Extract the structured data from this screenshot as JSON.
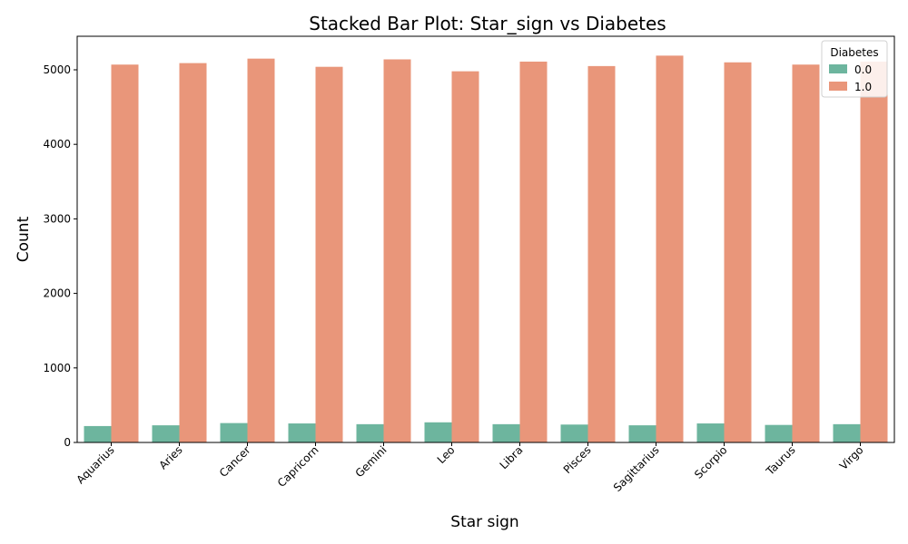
{
  "chart_data": {
    "type": "bar",
    "title": "Stacked Bar Plot: Star_sign vs Diabetes",
    "xlabel": "Star sign",
    "ylabel": "Count",
    "ylim": [
      0,
      5450
    ],
    "yticks": [
      0,
      1000,
      2000,
      3000,
      4000,
      5000
    ],
    "grid": false,
    "legend": {
      "title": "Diabetes",
      "placement": "top-right"
    },
    "categories": [
      "Aquarius",
      "Aries",
      "Cancer",
      "Capricorn",
      "Gemini",
      "Leo",
      "Libra",
      "Pisces",
      "Sagittarius",
      "Scorpio",
      "Taurus",
      "Virgo"
    ],
    "series": [
      {
        "name": "0.0",
        "color": "#6db59e",
        "values": [
          220,
          230,
          260,
          255,
          245,
          270,
          245,
          240,
          230,
          255,
          235,
          245
        ]
      },
      {
        "name": "1.0",
        "color": "#e9967a",
        "values": [
          5070,
          5090,
          5150,
          5040,
          5140,
          4980,
          5110,
          5050,
          5190,
          5100,
          5070,
          5110
        ]
      }
    ]
  }
}
